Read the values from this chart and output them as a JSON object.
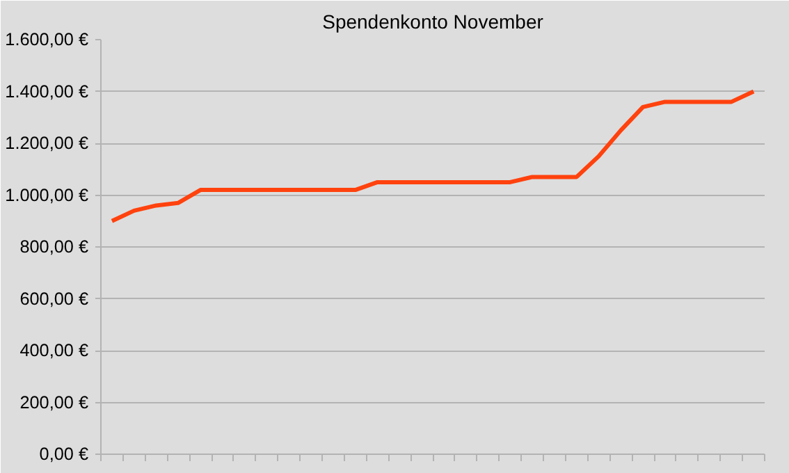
{
  "chart_data": {
    "type": "line",
    "title": "Spendenkonto November",
    "categories": [
      null,
      null,
      null,
      null,
      null,
      null,
      null,
      null,
      null,
      null,
      null,
      null,
      null,
      null,
      null,
      null,
      null,
      null,
      null,
      null,
      null,
      null,
      null,
      null,
      null,
      null,
      null,
      null,
      null,
      null
    ],
    "series": [
      {
        "color": "#ff420e",
        "values": [
          900,
          940,
          960,
          970,
          1020,
          1020,
          1020,
          1020,
          1020,
          1020,
          1020,
          1020,
          1050,
          1050,
          1050,
          1050,
          1050,
          1050,
          1050,
          1070,
          1070,
          1070,
          1150,
          1250,
          1340,
          1360,
          1360,
          1360,
          1360,
          1400
        ]
      }
    ],
    "ylim": [
      0,
      1600
    ],
    "yticks": [
      {
        "value": 0,
        "label": "0,00 €"
      },
      {
        "value": 200,
        "label": "200,00 €"
      },
      {
        "value": 400,
        "label": "400,00 €"
      },
      {
        "value": 600,
        "label": "600,00 €"
      },
      {
        "value": 800,
        "label": "800,00 €"
      },
      {
        "value": 1000,
        "label": "1.000,00 €"
      },
      {
        "value": 1200,
        "label": "1.200,00 €"
      },
      {
        "value": 1400,
        "label": "1.400,00 €"
      },
      {
        "value": 1600,
        "label": "1.600,00 €"
      }
    ],
    "grid": "y",
    "marker": "none",
    "line_style": "solid"
  }
}
